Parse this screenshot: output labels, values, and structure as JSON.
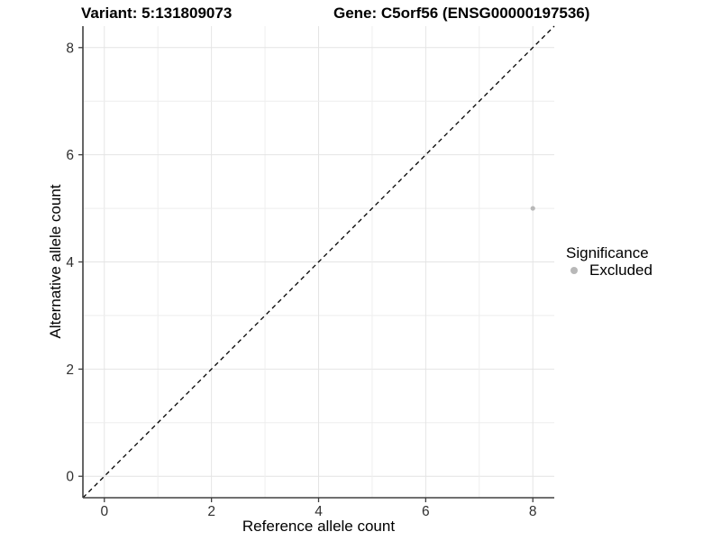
{
  "header": {
    "variant_title": "Variant: 5:131809073",
    "gene_title": "Gene: C5orf56 (ENSG00000197536)"
  },
  "chart_data": {
    "type": "scatter",
    "xlabel": "Reference allele count",
    "ylabel": "Alternative allele count",
    "xlim": [
      -0.4,
      8.4
    ],
    "ylim": [
      -0.4,
      8.4
    ],
    "x_ticks": [
      0,
      2,
      4,
      6,
      8
    ],
    "y_ticks": [
      0,
      2,
      4,
      6,
      8
    ],
    "grid_range": [
      0,
      8
    ],
    "grid_interval": 1,
    "grid_on": true,
    "identity_line": {
      "style": "dashed",
      "from": [
        -0.4,
        -0.4
      ],
      "to": [
        8.4,
        8.4
      ],
      "color": "#000000"
    },
    "points": [
      {
        "x": 8,
        "y": 5,
        "significance": "Excluded",
        "color": "#b8b8b8",
        "radius": 2.6
      }
    ],
    "legend": {
      "position": "right",
      "title": "Significance",
      "items": [
        {
          "label": "Excluded",
          "color": "#b8b8b8"
        }
      ]
    },
    "colors": {
      "background": "#ffffff",
      "grid_major": "#e4e4e4",
      "grid_minor": "#eeeeee",
      "axis_line": "#404040",
      "tick_text": "#303030"
    }
  }
}
